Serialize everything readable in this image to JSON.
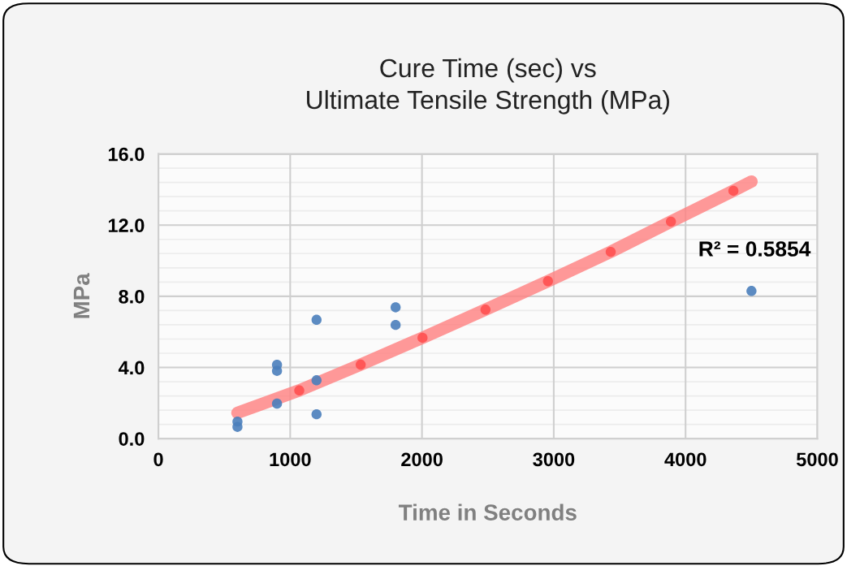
{
  "chart_data": {
    "type": "scatter",
    "title": "Cure Time (sec) vs\nUltimate Tensile Strength (MPa)",
    "xlabel": "Time in Seconds",
    "ylabel": "MPa",
    "xlim": [
      0,
      5000
    ],
    "xticks": [
      0,
      1000,
      2000,
      3000,
      4000,
      5000
    ],
    "ylim": [
      0,
      16
    ],
    "yticks": [
      {
        "value": 0,
        "label": "0.0"
      },
      {
        "value": 4,
        "label": "4.0"
      },
      {
        "value": 8,
        "label": "8.0"
      },
      {
        "value": 12,
        "label": "12.0"
      },
      {
        "value": 16,
        "label": "16.0"
      }
    ],
    "grid": true,
    "marker": "circle",
    "annotations": [
      "R² = 0.5854"
    ],
    "series": [
      {
        "type": "line",
        "color": "#ff8080",
        "x": [
          600,
          1069,
          1535,
          2004,
          2482,
          2956,
          3432,
          3889,
          4363,
          4500
        ],
        "values": [
          1.45,
          2.71,
          4.16,
          5.67,
          7.25,
          8.85,
          10.5,
          12.2,
          13.93,
          14.45
        ],
        "marker": "none"
      },
      {
        "color": "#ff5050",
        "x": [
          1069,
          1535,
          2004,
          2482,
          2956,
          3432,
          3889,
          4363
        ],
        "values": [
          2.71,
          4.16,
          5.67,
          7.25,
          8.85,
          10.5,
          12.2,
          13.93
        ]
      },
      {
        "color": "#4a7ebb",
        "x": [
          600,
          600,
          900,
          900,
          900,
          1200,
          1200,
          1200,
          1800,
          1800,
          4500
        ],
        "values": [
          0.66,
          0.96,
          4.15,
          3.81,
          1.97,
          6.68,
          3.28,
          1.37,
          7.38,
          6.39,
          8.3
        ]
      }
    ]
  }
}
